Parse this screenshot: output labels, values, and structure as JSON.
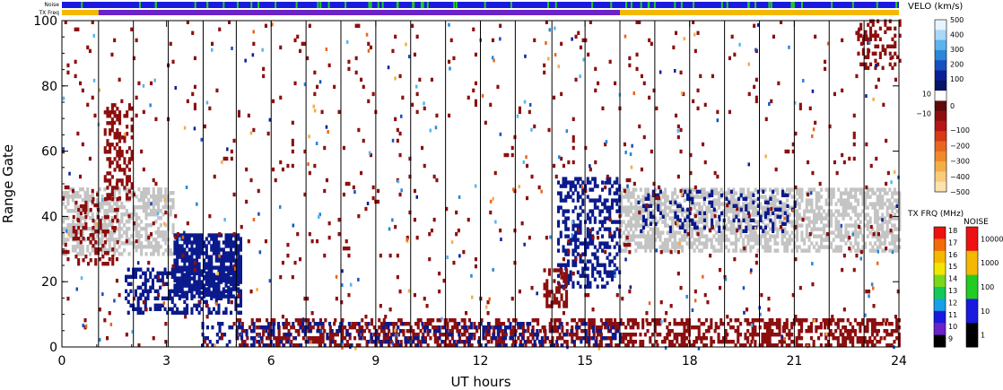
{
  "chart_data": {
    "type": "heatmap",
    "title": "",
    "xlabel": "UT hours",
    "ylabel": "Range Gate",
    "xlim": [
      0,
      24
    ],
    "ylim": [
      0,
      100
    ],
    "x_ticks": [
      "0",
      "3",
      "6",
      "9",
      "12",
      "15",
      "18",
      "21",
      "24"
    ],
    "x_tick_values": [
      0,
      3,
      6,
      9,
      12,
      15,
      18,
      21,
      24
    ],
    "y_ticks": [
      "0",
      "20",
      "40",
      "60",
      "80",
      "100"
    ],
    "y_tick_values": [
      0,
      20,
      40,
      60,
      80,
      100
    ],
    "scan_boundaries_ut": [
      1.05,
      2.05,
      3.05,
      4.05,
      5.0,
      6.0,
      7.0,
      8.0,
      9.0,
      10.0,
      11.0,
      12.0,
      13.0,
      14.05,
      15.0,
      16.0,
      17.0,
      18.0,
      19.0,
      20.0,
      21.0,
      22.0,
      23.0
    ],
    "top_bars": {
      "noise_label": "Noise",
      "txfreq_label": "TX Freq",
      "noise_base_color": "#1a1adf",
      "noise_spikes_color": "#22cc22",
      "txfreq_segments": [
        {
          "start": 0.0,
          "end": 1.05,
          "color": "#f5b800"
        },
        {
          "start": 1.05,
          "end": 16.0,
          "color": "#6b22c8"
        },
        {
          "start": 16.0,
          "end": 24.0,
          "color": "#f5b800"
        }
      ]
    },
    "regions": [
      {
        "name": "ground scatter early",
        "color": "#c4c4c4",
        "x": [
          0.0,
          3.2
        ],
        "y": [
          28,
          48
        ],
        "density": 0.55
      },
      {
        "name": "ground scatter late",
        "color": "#c4c4c4",
        "x": [
          16.0,
          24.0
        ],
        "y": [
          29,
          48
        ],
        "density": 0.6
      },
      {
        "name": "negative velocity plume",
        "color": "#8c0f0f",
        "x": [
          1.2,
          2.0
        ],
        "y": [
          45,
          74
        ],
        "density": 0.35
      },
      {
        "name": "negative velocity early",
        "color": "#8c0f0f",
        "x": [
          0.3,
          1.6
        ],
        "y": [
          25,
          45
        ],
        "density": 0.25
      },
      {
        "name": "positive velocity band",
        "color": "#0b1a8c",
        "x": [
          3.2,
          5.1
        ],
        "y": [
          15,
          34
        ],
        "density": 0.75
      },
      {
        "name": "positive velocity lower band",
        "color": "#0b1a8c",
        "x": [
          1.8,
          5.1
        ],
        "y": [
          10,
          24
        ],
        "density": 0.4
      },
      {
        "name": "near-range mixed scatter",
        "color": "#8c0f0f",
        "x": [
          5.0,
          24.0
        ],
        "y": [
          0,
          8
        ],
        "density": 0.45
      },
      {
        "name": "near-range positive",
        "color": "#0b1a8c",
        "x": [
          4.0,
          16.0
        ],
        "y": [
          0,
          7
        ],
        "density": 0.25
      },
      {
        "name": "positive velocity 15h",
        "color": "#0b1a8c",
        "x": [
          14.2,
          16.0
        ],
        "y": [
          18,
          52
        ],
        "density": 0.4
      },
      {
        "name": "negative velocity 14h",
        "color": "#8c0f0f",
        "x": [
          13.8,
          14.5
        ],
        "y": [
          12,
          24
        ],
        "density": 0.5
      },
      {
        "name": "far-range negative",
        "color": "#8c0f0f",
        "x": [
          22.8,
          24.0
        ],
        "y": [
          85,
          100
        ],
        "density": 0.35
      },
      {
        "name": "positive velocity late",
        "color": "#0b1a8c",
        "x": [
          16.5,
          21.0
        ],
        "y": [
          35,
          48
        ],
        "density": 0.2
      },
      {
        "name": "scattered noise",
        "color": "#8c0f0f",
        "x": [
          0.0,
          24.0
        ],
        "y": [
          0,
          100
        ],
        "density": 0.02
      }
    ],
    "velocity_colorbar": {
      "label": "VELO (km/s)",
      "ticks": [
        "500",
        "400",
        "300",
        "200",
        "100",
        "10",
        "0",
        "−10",
        "−100",
        "−200",
        "−300",
        "−400",
        "−500"
      ],
      "colors": [
        "#e8f4ff",
        "#a8d8f8",
        "#5ab4ee",
        "#2a86d8",
        "#1650c0",
        "#0a1f96",
        "#081466",
        "#ffffff",
        "#5e0a0a",
        "#8c0f0f",
        "#b81414",
        "#d83a14",
        "#e8661e",
        "#f08a28",
        "#f4ae48",
        "#f8cc78",
        "#fbe2b0"
      ]
    },
    "txfreq_colorbar": {
      "label": "TX FRQ (MHz)",
      "ticks": [
        "18",
        "17",
        "16",
        "15",
        "14",
        "13",
        "12",
        "11",
        "10",
        "9"
      ],
      "colors": [
        "#ee1111",
        "#f46a0a",
        "#f5b800",
        "#f0e600",
        "#7ad81e",
        "#14c85a",
        "#18a0e6",
        "#1a1adf",
        "#6b22c8",
        "#000000"
      ]
    },
    "noise_colorbar": {
      "label": "NOISE",
      "ticks": [
        "10000",
        "1000",
        "100",
        "10",
        "1"
      ],
      "colors": [
        "#ee1111",
        "#f5b800",
        "#22cc22",
        "#1a1adf",
        "#000000"
      ]
    }
  }
}
